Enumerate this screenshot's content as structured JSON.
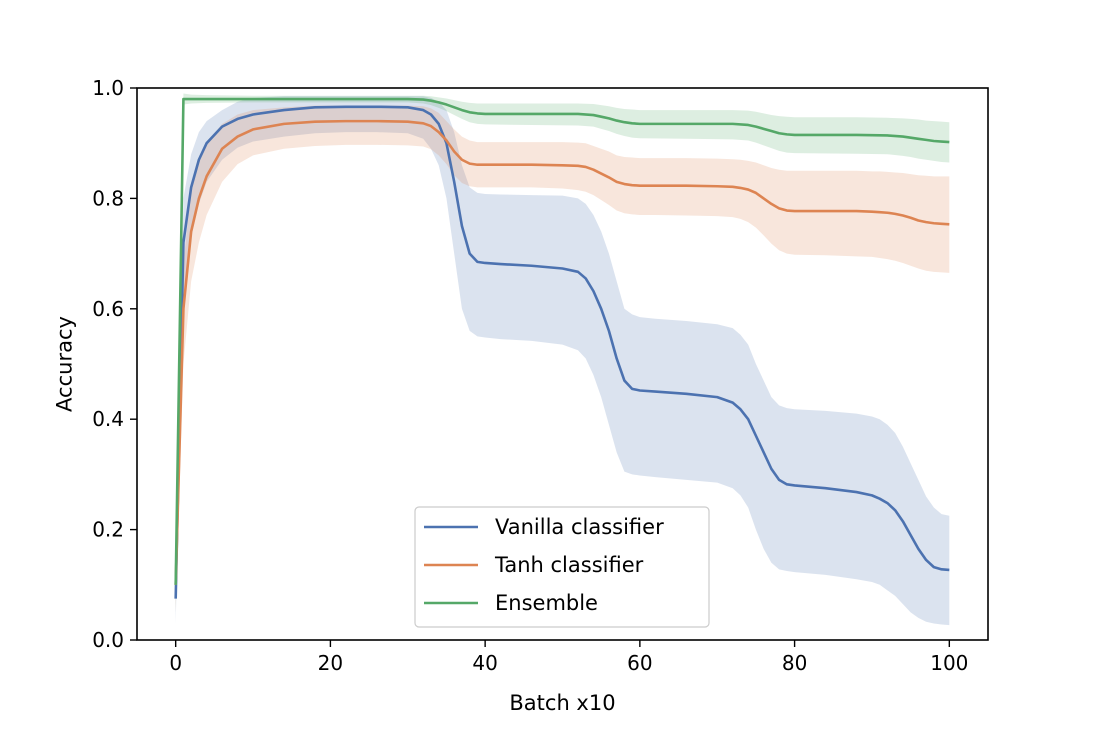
{
  "chart_data": {
    "type": "line",
    "xlabel": "Batch x10",
    "ylabel": "Accuracy",
    "xlim": [
      -5,
      105
    ],
    "ylim": [
      0.0,
      1.0
    ],
    "xticks": [
      0,
      20,
      40,
      60,
      80,
      100
    ],
    "yticks": [
      0.0,
      0.2,
      0.4,
      0.6,
      0.8,
      1.0
    ],
    "xtick_labels": [
      "0",
      "20",
      "40",
      "60",
      "80",
      "100"
    ],
    "ytick_labels": [
      "0.0",
      "0.2",
      "0.4",
      "0.6",
      "0.8",
      "1.0"
    ],
    "grid": false,
    "legend_position": "lower-center",
    "series": [
      {
        "name": "Vanilla classifier",
        "color": "#4c72b0",
        "x": [
          0,
          1,
          2,
          3,
          4,
          6,
          8,
          10,
          14,
          18,
          22,
          26,
          30,
          32,
          33,
          34,
          35,
          36,
          37,
          38,
          39,
          40,
          42,
          46,
          50,
          52,
          53,
          54,
          55,
          56,
          57,
          58,
          59,
          60,
          62,
          66,
          70,
          72,
          73,
          74,
          75,
          76,
          77,
          78,
          79,
          80,
          84,
          88,
          90,
          91,
          92,
          93,
          94,
          95,
          96,
          97,
          98,
          99,
          100
        ],
        "y": [
          0.075,
          0.72,
          0.82,
          0.87,
          0.9,
          0.93,
          0.944,
          0.952,
          0.96,
          0.965,
          0.966,
          0.966,
          0.965,
          0.96,
          0.952,
          0.935,
          0.9,
          0.83,
          0.75,
          0.7,
          0.685,
          0.683,
          0.681,
          0.678,
          0.673,
          0.667,
          0.655,
          0.632,
          0.6,
          0.56,
          0.51,
          0.47,
          0.455,
          0.452,
          0.45,
          0.446,
          0.44,
          0.43,
          0.418,
          0.4,
          0.37,
          0.34,
          0.31,
          0.29,
          0.282,
          0.28,
          0.275,
          0.268,
          0.262,
          0.256,
          0.248,
          0.235,
          0.215,
          0.19,
          0.165,
          0.145,
          0.132,
          0.128,
          0.127
        ],
        "band_lower": [
          0.03,
          0.62,
          0.73,
          0.79,
          0.83,
          0.87,
          0.892,
          0.903,
          0.912,
          0.918,
          0.92,
          0.92,
          0.918,
          0.908,
          0.89,
          0.86,
          0.8,
          0.7,
          0.6,
          0.56,
          0.55,
          0.548,
          0.545,
          0.542,
          0.535,
          0.525,
          0.51,
          0.48,
          0.44,
          0.39,
          0.34,
          0.305,
          0.3,
          0.298,
          0.295,
          0.29,
          0.285,
          0.275,
          0.262,
          0.24,
          0.2,
          0.165,
          0.14,
          0.128,
          0.125,
          0.123,
          0.118,
          0.11,
          0.105,
          0.1,
          0.09,
          0.08,
          0.065,
          0.05,
          0.04,
          0.033,
          0.03,
          0.028,
          0.027
        ],
        "band_upper": [
          0.12,
          0.8,
          0.88,
          0.92,
          0.94,
          0.96,
          0.975,
          0.982,
          0.985,
          0.985,
          0.985,
          0.985,
          0.985,
          0.985,
          0.982,
          0.975,
          0.96,
          0.92,
          0.86,
          0.82,
          0.81,
          0.808,
          0.807,
          0.806,
          0.805,
          0.8,
          0.79,
          0.77,
          0.74,
          0.7,
          0.65,
          0.6,
          0.59,
          0.585,
          0.582,
          0.578,
          0.572,
          0.565,
          0.553,
          0.535,
          0.5,
          0.47,
          0.44,
          0.425,
          0.42,
          0.418,
          0.415,
          0.41,
          0.405,
          0.4,
          0.39,
          0.375,
          0.35,
          0.32,
          0.29,
          0.26,
          0.24,
          0.228,
          0.225
        ]
      },
      {
        "name": "Tanh classifier",
        "color": "#dd8452",
        "x": [
          0,
          1,
          2,
          3,
          4,
          6,
          8,
          10,
          14,
          18,
          22,
          26,
          30,
          32,
          33,
          34,
          35,
          36,
          37,
          38,
          39,
          40,
          42,
          46,
          50,
          52,
          53,
          54,
          55,
          56,
          57,
          58,
          59,
          60,
          62,
          66,
          70,
          72,
          73,
          74,
          75,
          76,
          77,
          78,
          79,
          80,
          84,
          88,
          90,
          91,
          92,
          93,
          94,
          95,
          96,
          97,
          98,
          99,
          100
        ],
        "y": [
          0.1,
          0.6,
          0.74,
          0.8,
          0.84,
          0.89,
          0.912,
          0.925,
          0.935,
          0.939,
          0.94,
          0.94,
          0.939,
          0.936,
          0.931,
          0.92,
          0.905,
          0.885,
          0.87,
          0.863,
          0.861,
          0.861,
          0.861,
          0.861,
          0.86,
          0.859,
          0.857,
          0.852,
          0.845,
          0.838,
          0.83,
          0.826,
          0.824,
          0.823,
          0.823,
          0.823,
          0.822,
          0.821,
          0.819,
          0.816,
          0.81,
          0.8,
          0.79,
          0.782,
          0.778,
          0.777,
          0.777,
          0.777,
          0.776,
          0.775,
          0.774,
          0.772,
          0.769,
          0.765,
          0.76,
          0.757,
          0.755,
          0.754,
          0.753
        ],
        "band_lower": [
          0.05,
          0.5,
          0.65,
          0.72,
          0.77,
          0.83,
          0.862,
          0.878,
          0.89,
          0.895,
          0.897,
          0.897,
          0.896,
          0.894,
          0.889,
          0.878,
          0.862,
          0.842,
          0.828,
          0.822,
          0.82,
          0.82,
          0.82,
          0.82,
          0.818,
          0.815,
          0.812,
          0.806,
          0.797,
          0.788,
          0.778,
          0.773,
          0.771,
          0.77,
          0.77,
          0.769,
          0.768,
          0.766,
          0.763,
          0.757,
          0.747,
          0.733,
          0.718,
          0.706,
          0.7,
          0.698,
          0.697,
          0.695,
          0.694,
          0.692,
          0.69,
          0.687,
          0.683,
          0.678,
          0.673,
          0.669,
          0.667,
          0.666,
          0.665
        ],
        "band_upper": [
          0.15,
          0.68,
          0.82,
          0.87,
          0.9,
          0.935,
          0.952,
          0.96,
          0.965,
          0.968,
          0.968,
          0.968,
          0.968,
          0.967,
          0.963,
          0.955,
          0.94,
          0.925,
          0.912,
          0.905,
          0.902,
          0.902,
          0.902,
          0.902,
          0.902,
          0.901,
          0.9,
          0.895,
          0.89,
          0.885,
          0.878,
          0.875,
          0.874,
          0.873,
          0.873,
          0.873,
          0.872,
          0.871,
          0.87,
          0.868,
          0.865,
          0.86,
          0.855,
          0.852,
          0.85,
          0.85,
          0.85,
          0.85,
          0.849,
          0.849,
          0.848,
          0.847,
          0.846,
          0.844,
          0.842,
          0.841,
          0.84,
          0.84,
          0.84
        ]
      },
      {
        "name": "Ensemble",
        "color": "#55a868",
        "x": [
          0,
          1,
          2,
          4,
          10,
          20,
          30,
          32,
          33,
          34,
          35,
          36,
          37,
          38,
          39,
          40,
          46,
          52,
          54,
          55,
          56,
          57,
          58,
          59,
          60,
          66,
          72,
          74,
          75,
          76,
          77,
          78,
          79,
          80,
          88,
          92,
          94,
          95,
          96,
          97,
          98,
          99,
          100
        ],
        "y": [
          0.1,
          0.98,
          0.98,
          0.98,
          0.98,
          0.98,
          0.98,
          0.979,
          0.977,
          0.974,
          0.97,
          0.965,
          0.96,
          0.956,
          0.954,
          0.953,
          0.953,
          0.953,
          0.951,
          0.948,
          0.945,
          0.941,
          0.938,
          0.936,
          0.935,
          0.935,
          0.935,
          0.933,
          0.93,
          0.926,
          0.922,
          0.918,
          0.916,
          0.915,
          0.915,
          0.914,
          0.912,
          0.91,
          0.908,
          0.906,
          0.904,
          0.903,
          0.902
        ],
        "band_lower": [
          0.05,
          0.97,
          0.972,
          0.973,
          0.974,
          0.974,
          0.974,
          0.972,
          0.969,
          0.964,
          0.958,
          0.951,
          0.944,
          0.938,
          0.935,
          0.934,
          0.933,
          0.932,
          0.93,
          0.926,
          0.922,
          0.917,
          0.913,
          0.91,
          0.909,
          0.908,
          0.907,
          0.905,
          0.901,
          0.896,
          0.891,
          0.886,
          0.883,
          0.882,
          0.881,
          0.88,
          0.877,
          0.875,
          0.872,
          0.87,
          0.868,
          0.866,
          0.865
        ],
        "band_upper": [
          0.15,
          0.99,
          0.988,
          0.987,
          0.986,
          0.986,
          0.986,
          0.986,
          0.985,
          0.983,
          0.981,
          0.978,
          0.975,
          0.973,
          0.972,
          0.972,
          0.972,
          0.972,
          0.971,
          0.969,
          0.967,
          0.964,
          0.962,
          0.961,
          0.96,
          0.96,
          0.96,
          0.959,
          0.957,
          0.954,
          0.951,
          0.949,
          0.948,
          0.947,
          0.947,
          0.946,
          0.945,
          0.944,
          0.943,
          0.941,
          0.94,
          0.939,
          0.938
        ]
      }
    ]
  }
}
